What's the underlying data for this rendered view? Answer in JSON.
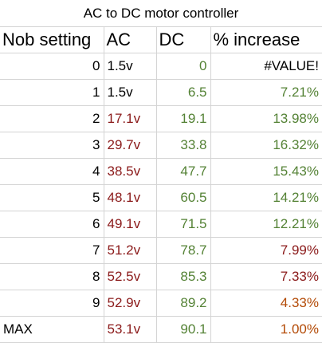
{
  "title": "AC to DC motor controller",
  "columns": [
    "Nob setting",
    "AC",
    "DC",
    "% increase"
  ],
  "colors": {
    "green": "#548235",
    "dark_red": "#8b1a1a",
    "orange_brown": "#b34a06",
    "black": "#000000"
  },
  "rows": [
    {
      "setting": "0",
      "ac": "1.5v",
      "dc": "0",
      "increase": "#VALUE!",
      "ac_color": "#000000",
      "dc_color": "#548235",
      "inc_color": "#000000"
    },
    {
      "setting": "1",
      "ac": "1.5v",
      "dc": "6.5",
      "increase": "7.21%",
      "ac_color": "#000000",
      "dc_color": "#548235",
      "inc_color": "#548235"
    },
    {
      "setting": "2",
      "ac": "17.1v",
      "dc": "19.1",
      "increase": "13.98%",
      "ac_color": "#8b1a1a",
      "dc_color": "#548235",
      "inc_color": "#548235"
    },
    {
      "setting": "3",
      "ac": "29.7v",
      "dc": "33.8",
      "increase": "16.32%",
      "ac_color": "#8b1a1a",
      "dc_color": "#548235",
      "inc_color": "#548235"
    },
    {
      "setting": "4",
      "ac": "38.5v",
      "dc": "47.7",
      "increase": "15.43%",
      "ac_color": "#8b1a1a",
      "dc_color": "#548235",
      "inc_color": "#548235"
    },
    {
      "setting": "5",
      "ac": "48.1v",
      "dc": "60.5",
      "increase": "14.21%",
      "ac_color": "#8b1a1a",
      "dc_color": "#548235",
      "inc_color": "#548235"
    },
    {
      "setting": "6",
      "ac": "49.1v",
      "dc": "71.5",
      "increase": "12.21%",
      "ac_color": "#8b1a1a",
      "dc_color": "#548235",
      "inc_color": "#548235"
    },
    {
      "setting": "7",
      "ac": "51.2v",
      "dc": "78.7",
      "increase": "7.99%",
      "ac_color": "#8b1a1a",
      "dc_color": "#548235",
      "inc_color": "#8b1a1a"
    },
    {
      "setting": "8",
      "ac": "52.5v",
      "dc": "85.3",
      "increase": "7.33%",
      "ac_color": "#8b1a1a",
      "dc_color": "#548235",
      "inc_color": "#8b1a1a"
    },
    {
      "setting": "9",
      "ac": "52.9v",
      "dc": "89.2",
      "increase": "4.33%",
      "ac_color": "#8b1a1a",
      "dc_color": "#548235",
      "inc_color": "#b34a06"
    },
    {
      "setting": "MAX",
      "ac": "53.1v",
      "dc": "90.1",
      "increase": "1.00%",
      "ac_color": "#8b1a1a",
      "dc_color": "#548235",
      "inc_color": "#b34a06"
    }
  ]
}
